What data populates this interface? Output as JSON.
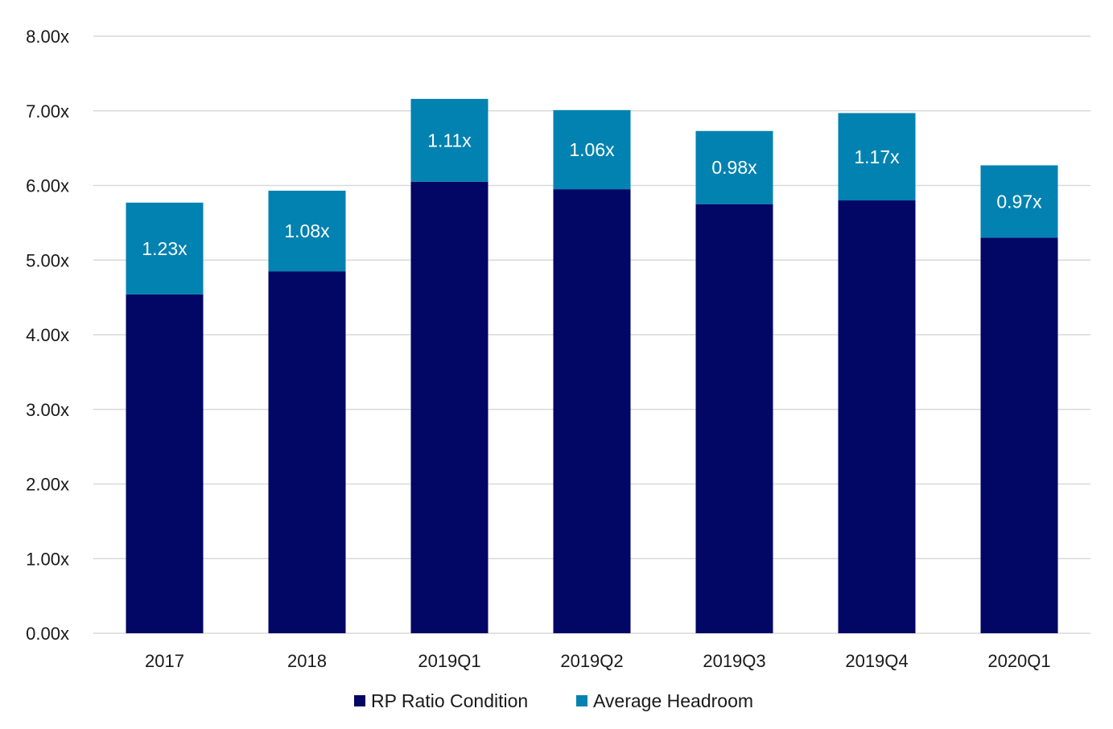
{
  "chart_data": {
    "type": "bar",
    "stacked": true,
    "categories": [
      "2017",
      "2018",
      "2019Q1",
      "2019Q2",
      "2019Q3",
      "2019Q4",
      "2020Q1"
    ],
    "series": [
      {
        "name": "RP Ratio Condition",
        "color": "#020664",
        "values": [
          4.54,
          4.85,
          6.05,
          5.95,
          5.75,
          5.8,
          5.3
        ]
      },
      {
        "name": "Average Headroom",
        "color": "#0282b0",
        "values": [
          1.23,
          1.08,
          1.11,
          1.06,
          0.98,
          1.17,
          0.97
        ],
        "data_labels": [
          "1.23x",
          "1.08x",
          "1.11x",
          "1.06x",
          "0.98x",
          "1.17x",
          "0.97x"
        ]
      }
    ],
    "y_ticks": [
      "0.00x",
      "1.00x",
      "2.00x",
      "3.00x",
      "4.00x",
      "5.00x",
      "6.00x",
      "7.00x",
      "8.00x"
    ],
    "ylim": [
      0,
      8
    ],
    "grid": true,
    "legend_position": "bottom-center",
    "title": "",
    "xlabel": "",
    "ylabel": ""
  }
}
